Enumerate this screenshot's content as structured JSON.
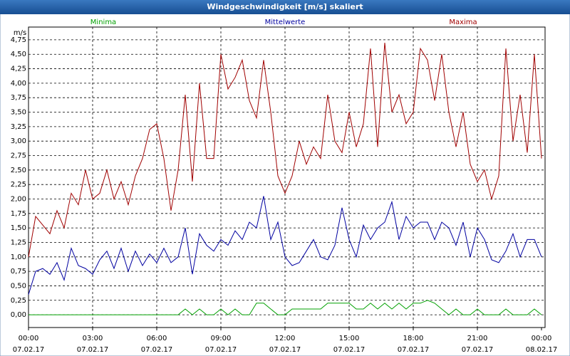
{
  "chart_data": {
    "type": "line",
    "title": "Windgeschwindigkeit [m/s] skaliert",
    "y_unit": "m/s",
    "grid": true,
    "x": [
      0,
      20,
      40,
      60,
      80,
      100,
      120,
      140,
      160,
      180,
      200,
      220,
      240,
      260,
      280,
      300,
      320,
      340,
      360,
      380,
      400,
      420,
      440,
      460,
      480,
      500,
      520,
      540,
      560,
      580,
      600,
      620,
      640,
      660,
      680,
      700,
      720,
      740,
      760,
      780,
      800,
      820,
      840,
      860,
      880,
      900,
      920,
      940,
      960,
      980,
      1000,
      1020,
      1040,
      1060,
      1080,
      1100,
      1120,
      1140,
      1160,
      1180,
      1200,
      1220,
      1240,
      1260,
      1280,
      1300,
      1320,
      1340,
      1360,
      1380,
      1400,
      1420,
      1440
    ],
    "series": [
      {
        "name": "Minima",
        "color": "#00a000",
        "values": [
          0,
          0,
          0,
          0,
          0,
          0,
          0,
          0,
          0,
          0,
          0,
          0,
          0,
          0,
          0,
          0,
          0,
          0,
          0,
          0,
          0,
          0,
          0.1,
          0,
          0.1,
          0,
          0,
          0.1,
          0,
          0.1,
          0,
          0,
          0.2,
          0.2,
          0.1,
          0,
          0,
          0.1,
          0.1,
          0.1,
          0.1,
          0.1,
          0.2,
          0.2,
          0.2,
          0.2,
          0.1,
          0.1,
          0.2,
          0.1,
          0.2,
          0.1,
          0.2,
          0.1,
          0.2,
          0.2,
          0.25,
          0.2,
          0.1,
          0,
          0.1,
          0,
          0,
          0.1,
          0,
          0,
          0,
          0.1,
          0,
          0,
          0,
          0.1,
          0
        ]
      },
      {
        "name": "Mittelwerte",
        "color": "#0000a0",
        "values": [
          0.35,
          0.75,
          0.8,
          0.7,
          0.9,
          0.6,
          1.15,
          0.85,
          0.8,
          0.7,
          0.95,
          1.1,
          0.8,
          1.15,
          0.75,
          1.1,
          0.85,
          1.05,
          0.9,
          1.15,
          0.9,
          1.0,
          1.5,
          0.7,
          1.4,
          1.2,
          1.1,
          1.3,
          1.2,
          1.45,
          1.3,
          1.6,
          1.5,
          2.05,
          1.3,
          1.6,
          1.0,
          0.85,
          0.9,
          1.1,
          1.3,
          1.0,
          0.95,
          1.2,
          1.85,
          1.3,
          1.0,
          1.55,
          1.3,
          1.5,
          1.6,
          1.95,
          1.3,
          1.7,
          1.5,
          1.6,
          1.6,
          1.3,
          1.6,
          1.5,
          1.2,
          1.6,
          1.0,
          1.5,
          1.3,
          0.95,
          0.9,
          1.1,
          1.4,
          1.0,
          1.3,
          1.3,
          1.0
        ]
      },
      {
        "name": "Maxima",
        "color": "#a00000",
        "values": [
          1.0,
          1.7,
          1.55,
          1.4,
          1.8,
          1.5,
          2.1,
          1.9,
          2.5,
          2.0,
          2.1,
          2.5,
          2.0,
          2.3,
          1.9,
          2.4,
          2.7,
          3.2,
          3.3,
          2.7,
          1.8,
          2.5,
          3.8,
          2.3,
          4.0,
          2.7,
          2.7,
          4.5,
          3.9,
          4.1,
          4.4,
          3.7,
          3.4,
          4.4,
          3.5,
          2.4,
          2.1,
          2.4,
          3.0,
          2.6,
          2.9,
          2.7,
          3.8,
          3.0,
          2.8,
          3.5,
          2.9,
          3.3,
          4.6,
          2.9,
          4.7,
          3.5,
          3.8,
          3.3,
          3.5,
          4.6,
          4.4,
          3.7,
          4.5,
          3.5,
          2.9,
          3.5,
          2.6,
          2.3,
          2.5,
          2.0,
          2.4,
          4.6,
          3.0,
          3.8,
          2.8,
          4.5,
          2.7
        ]
      }
    ],
    "xlim": [
      0,
      1440
    ],
    "xticks": [
      {
        "value": 0,
        "label": "00:00"
      },
      {
        "value": 180,
        "label": "03:00"
      },
      {
        "value": 360,
        "label": "06:00"
      },
      {
        "value": 540,
        "label": "09:00"
      },
      {
        "value": 720,
        "label": "12:00"
      },
      {
        "value": 900,
        "label": "15:00"
      },
      {
        "value": 1080,
        "label": "18:00"
      },
      {
        "value": 1260,
        "label": "21:00"
      },
      {
        "value": 1440,
        "label": "00:00"
      }
    ],
    "xtick_dates": [
      "07.02.17",
      "07.02.17",
      "07.02.17",
      "07.02.17",
      "07.02.17",
      "07.02.17",
      "07.02.17",
      "07.02.17",
      "08.02.17"
    ],
    "ylim": [
      -0.22,
      4.97
    ],
    "yticks": [
      {
        "value": 0,
        "label": "0,00"
      },
      {
        "value": 0.25,
        "label": "0,25"
      },
      {
        "value": 0.5,
        "label": "0,50"
      },
      {
        "value": 0.75,
        "label": "0,75"
      },
      {
        "value": 1,
        "label": "1,00"
      },
      {
        "value": 1.25,
        "label": "1,25"
      },
      {
        "value": 1.5,
        "label": "1,50"
      },
      {
        "value": 1.75,
        "label": "1,75"
      },
      {
        "value": 2,
        "label": "2,00"
      },
      {
        "value": 2.25,
        "label": "2,25"
      },
      {
        "value": 2.5,
        "label": "2,50"
      },
      {
        "value": 2.75,
        "label": "2,75"
      },
      {
        "value": 3,
        "label": "3,00"
      },
      {
        "value": 3.25,
        "label": "3,25"
      },
      {
        "value": 3.5,
        "label": "3,50"
      },
      {
        "value": 3.75,
        "label": "3,75"
      },
      {
        "value": 4,
        "label": "4,00"
      },
      {
        "value": 4.25,
        "label": "4,25"
      },
      {
        "value": 4.5,
        "label": "4,50"
      },
      {
        "value": 4.75,
        "label": "4,75"
      }
    ]
  }
}
